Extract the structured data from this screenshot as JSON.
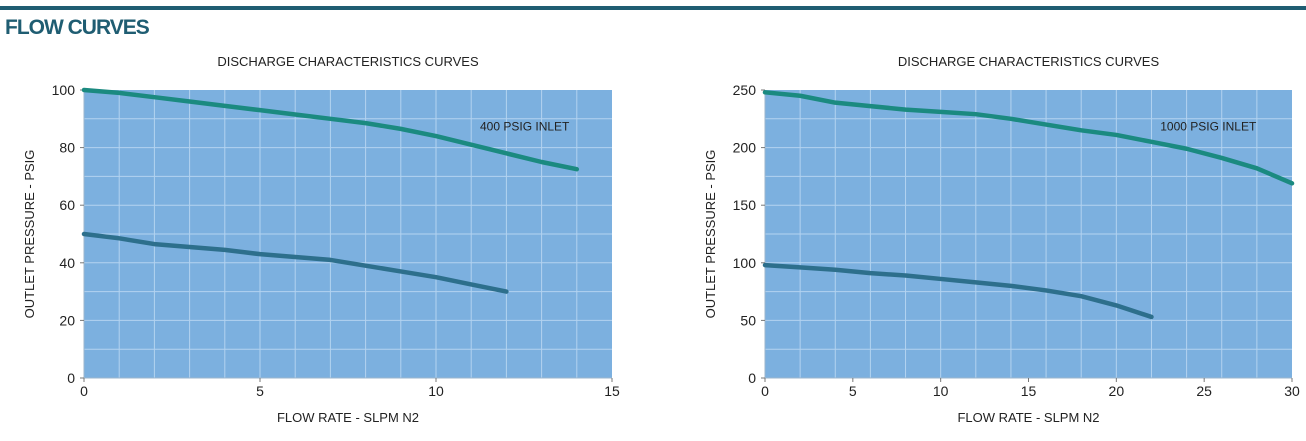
{
  "header": {
    "title": "FLOW CURVES"
  },
  "chart_data": [
    {
      "type": "line",
      "title": "DISCHARGE CHARACTERISTICS CURVES",
      "x_label": "FLOW RATE - SLPM N2",
      "y_label": "OUTLET PRESSURE - PSIG",
      "xlim": [
        0,
        15
      ],
      "xticks": [
        0,
        5,
        10,
        15
      ],
      "ylim": [
        0,
        100
      ],
      "yticks": [
        0,
        20,
        40,
        60,
        80,
        100
      ],
      "grid": true,
      "minor_grid": {
        "x": 1,
        "y": 10
      },
      "background": "#7cb0df",
      "series": [
        {
          "name": "400 PSIG INLET",
          "color": "#1b8a80",
          "x": [
            0,
            1,
            2,
            3,
            4,
            5,
            6,
            7,
            8,
            9,
            10,
            11,
            12,
            13,
            14
          ],
          "values": [
            100,
            99,
            97.5,
            96,
            94.5,
            93,
            91.5,
            90,
            88.5,
            86.5,
            84,
            81,
            78,
            75,
            72.5
          ]
        },
        {
          "color": "#2d6f8c",
          "x": [
            0,
            1,
            2,
            3,
            4,
            5,
            6,
            7,
            8,
            9,
            10,
            11,
            12
          ],
          "values": [
            50,
            48.5,
            46.5,
            45.5,
            44.5,
            43,
            42,
            41,
            39,
            37,
            35,
            32.5,
            30
          ]
        }
      ]
    },
    {
      "type": "line",
      "title": "DISCHARGE CHARACTERISTICS CURVES",
      "x_label": "FLOW RATE - SLPM N2",
      "y_label": "OUTLET PRESSURE - PSIG",
      "xlim": [
        0,
        30
      ],
      "xticks": [
        0,
        5,
        10,
        15,
        20,
        25,
        30
      ],
      "ylim": [
        0,
        250
      ],
      "yticks": [
        0,
        50,
        100,
        150,
        200,
        250
      ],
      "grid": true,
      "minor_grid": {
        "x": 2,
        "y": 25
      },
      "background": "#7cb0df",
      "series": [
        {
          "name": "1000 PSIG INLET",
          "color": "#1b8a80",
          "x": [
            0,
            2,
            4,
            6,
            8,
            10,
            12,
            14,
            16,
            18,
            20,
            22,
            24,
            26,
            28,
            30
          ],
          "values": [
            248,
            245,
            239,
            236,
            233,
            231,
            229,
            225,
            220,
            215,
            211,
            205,
            199,
            191,
            182,
            169
          ]
        },
        {
          "color": "#2d6f8c",
          "x": [
            0,
            2,
            4,
            6,
            8,
            10,
            12,
            14,
            16,
            18,
            20,
            22
          ],
          "values": [
            98,
            96,
            94,
            91,
            89,
            86,
            83,
            80,
            76,
            71,
            63,
            53
          ]
        }
      ]
    }
  ]
}
